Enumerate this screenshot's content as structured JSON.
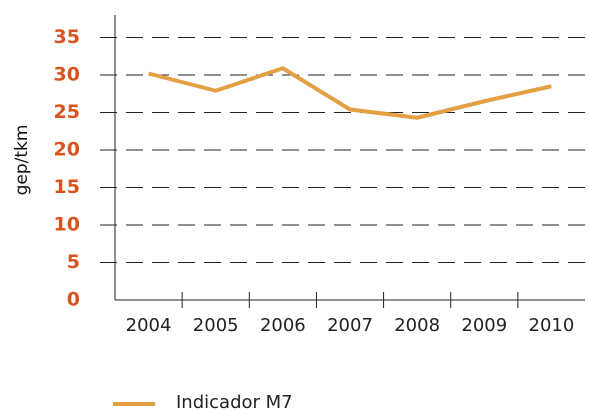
{
  "chart_data": {
    "type": "line",
    "y_label": "gep/tkm",
    "categories": [
      "2004",
      "2005",
      "2006",
      "2007",
      "2008",
      "2009",
      "2010"
    ],
    "series": [
      {
        "name": "Indicador M7",
        "color": "#e3a043",
        "values": [
          30.2,
          27.9,
          30.9,
          25.4,
          24.3,
          26.5,
          28.5
        ]
      }
    ],
    "ylim": [
      0,
      38
    ],
    "yticks": [
      0,
      5,
      10,
      15,
      20,
      25,
      30,
      35
    ],
    "grid": true
  }
}
